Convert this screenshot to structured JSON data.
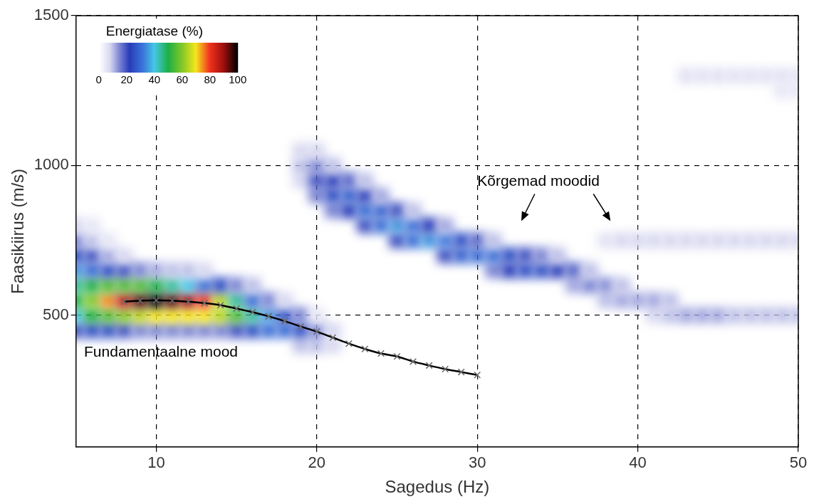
{
  "chart_data": {
    "type": "heatmap",
    "x_label": "Sagedus (Hz)",
    "y_label": "Faasikiirus (m/s)",
    "xlim": [
      5,
      50
    ],
    "xticks": [
      10,
      20,
      30,
      40,
      50
    ],
    "ylim": [
      60,
      1500
    ],
    "yticks": [
      500,
      1000,
      1500
    ],
    "grid": true,
    "heatmap": {
      "cells": [
        [
          5,
          450,
          20
        ],
        [
          5,
          500,
          40
        ],
        [
          5,
          550,
          50
        ],
        [
          5,
          600,
          45
        ],
        [
          5,
          650,
          35
        ],
        [
          5,
          700,
          25
        ],
        [
          5,
          750,
          15
        ],
        [
          5,
          800,
          8
        ],
        [
          6,
          450,
          25
        ],
        [
          6,
          500,
          50
        ],
        [
          6,
          550,
          60
        ],
        [
          6,
          600,
          50
        ],
        [
          6,
          650,
          30
        ],
        [
          6,
          700,
          20
        ],
        [
          6,
          750,
          10
        ],
        [
          6,
          800,
          5
        ],
        [
          7,
          450,
          25
        ],
        [
          7,
          500,
          55
        ],
        [
          7,
          550,
          75
        ],
        [
          7,
          600,
          55
        ],
        [
          7,
          650,
          25
        ],
        [
          7,
          700,
          12
        ],
        [
          7,
          750,
          5
        ],
        [
          8,
          450,
          20
        ],
        [
          8,
          500,
          60
        ],
        [
          8,
          550,
          85
        ],
        [
          8,
          600,
          55
        ],
        [
          8,
          650,
          20
        ],
        [
          8,
          700,
          8
        ],
        [
          9,
          450,
          15
        ],
        [
          9,
          500,
          65
        ],
        [
          9,
          550,
          95
        ],
        [
          9,
          600,
          55
        ],
        [
          9,
          650,
          15
        ],
        [
          10,
          450,
          15
        ],
        [
          10,
          500,
          70
        ],
        [
          10,
          550,
          100
        ],
        [
          10,
          600,
          50
        ],
        [
          10,
          650,
          12
        ],
        [
          11,
          450,
          15
        ],
        [
          11,
          500,
          70
        ],
        [
          11,
          550,
          95
        ],
        [
          11,
          600,
          45
        ],
        [
          11,
          650,
          10
        ],
        [
          12,
          450,
          15
        ],
        [
          12,
          500,
          70
        ],
        [
          12,
          550,
          90
        ],
        [
          12,
          600,
          40
        ],
        [
          12,
          650,
          10
        ],
        [
          13,
          450,
          15
        ],
        [
          13,
          500,
          70
        ],
        [
          13,
          550,
          80
        ],
        [
          13,
          600,
          30
        ],
        [
          13,
          650,
          8
        ],
        [
          14,
          450,
          15
        ],
        [
          14,
          500,
          65
        ],
        [
          14,
          550,
          65
        ],
        [
          14,
          600,
          25
        ],
        [
          15,
          450,
          20
        ],
        [
          15,
          500,
          55
        ],
        [
          15,
          550,
          45
        ],
        [
          15,
          600,
          15
        ],
        [
          16,
          450,
          25
        ],
        [
          16,
          500,
          45
        ],
        [
          16,
          550,
          30
        ],
        [
          16,
          600,
          10
        ],
        [
          17,
          450,
          30
        ],
        [
          17,
          500,
          35
        ],
        [
          17,
          550,
          15
        ],
        [
          18,
          450,
          30
        ],
        [
          18,
          500,
          25
        ],
        [
          18,
          550,
          8
        ],
        [
          19,
          400,
          10
        ],
        [
          19,
          450,
          25
        ],
        [
          19,
          500,
          15
        ],
        [
          20,
          400,
          10
        ],
        [
          20,
          450,
          15
        ],
        [
          20,
          500,
          5
        ],
        [
          21,
          400,
          8
        ],
        [
          21,
          450,
          8
        ],
        [
          19,
          950,
          8
        ],
        [
          19,
          1000,
          10
        ],
        [
          19,
          1050,
          8
        ],
        [
          20,
          900,
          15
        ],
        [
          20,
          950,
          20
        ],
        [
          20,
          1000,
          15
        ],
        [
          20,
          1050,
          8
        ],
        [
          21,
          850,
          15
        ],
        [
          21,
          900,
          25
        ],
        [
          21,
          950,
          22
        ],
        [
          21,
          1000,
          10
        ],
        [
          22,
          850,
          22
        ],
        [
          22,
          900,
          28
        ],
        [
          22,
          950,
          18
        ],
        [
          23,
          800,
          20
        ],
        [
          23,
          850,
          30
        ],
        [
          23,
          900,
          22
        ],
        [
          23,
          950,
          10
        ],
        [
          24,
          800,
          30
        ],
        [
          24,
          850,
          28
        ],
        [
          24,
          900,
          12
        ],
        [
          25,
          750,
          20
        ],
        [
          25,
          800,
          35
        ],
        [
          25,
          850,
          20
        ],
        [
          26,
          750,
          30
        ],
        [
          26,
          800,
          30
        ],
        [
          26,
          850,
          10
        ],
        [
          27,
          750,
          35
        ],
        [
          27,
          800,
          22
        ],
        [
          28,
          700,
          20
        ],
        [
          28,
          750,
          32
        ],
        [
          28,
          800,
          12
        ],
        [
          29,
          700,
          28
        ],
        [
          29,
          750,
          25
        ],
        [
          30,
          700,
          30
        ],
        [
          30,
          750,
          18
        ],
        [
          31,
          650,
          15
        ],
        [
          31,
          700,
          30
        ],
        [
          31,
          750,
          10
        ],
        [
          32,
          650,
          22
        ],
        [
          32,
          700,
          25
        ],
        [
          33,
          650,
          25
        ],
        [
          33,
          700,
          20
        ],
        [
          34,
          650,
          25
        ],
        [
          34,
          700,
          15
        ],
        [
          35,
          650,
          22
        ],
        [
          35,
          700,
          10
        ],
        [
          36,
          600,
          12
        ],
        [
          36,
          650,
          18
        ],
        [
          37,
          600,
          15
        ],
        [
          37,
          650,
          10
        ],
        [
          38,
          550,
          10
        ],
        [
          38,
          600,
          14
        ],
        [
          39,
          550,
          12
        ],
        [
          39,
          600,
          10
        ],
        [
          40,
          550,
          12
        ],
        [
          41,
          500,
          8
        ],
        [
          41,
          550,
          12
        ],
        [
          42,
          500,
          10
        ],
        [
          42,
          550,
          10
        ],
        [
          43,
          500,
          12
        ],
        [
          44,
          500,
          12
        ],
        [
          45,
          500,
          12
        ],
        [
          46,
          500,
          10
        ],
        [
          47,
          500,
          10
        ],
        [
          48,
          500,
          10
        ],
        [
          49,
          500,
          10
        ],
        [
          50,
          500,
          10
        ],
        [
          38,
          750,
          6
        ],
        [
          39,
          750,
          8
        ],
        [
          40,
          750,
          8
        ],
        [
          41,
          750,
          8
        ],
        [
          42,
          750,
          8
        ],
        [
          43,
          750,
          8
        ],
        [
          44,
          750,
          8
        ],
        [
          45,
          750,
          8
        ],
        [
          46,
          750,
          8
        ],
        [
          47,
          750,
          8
        ],
        [
          48,
          750,
          8
        ],
        [
          49,
          750,
          8
        ],
        [
          50,
          750,
          8
        ],
        [
          43,
          1300,
          6
        ],
        [
          44,
          1300,
          6
        ],
        [
          45,
          1300,
          6
        ],
        [
          46,
          1300,
          6
        ],
        [
          47,
          1300,
          6
        ],
        [
          48,
          1300,
          6
        ],
        [
          49,
          1300,
          6
        ],
        [
          50,
          1300,
          6
        ],
        [
          49,
          1250,
          5
        ],
        [
          50,
          1250,
          5
        ]
      ],
      "colorbar": {
        "label": "Energiatase (%)",
        "range": [
          0,
          100
        ],
        "ticks": [
          0,
          20,
          40,
          60,
          80,
          100
        ]
      }
    },
    "series": [
      {
        "type": "line",
        "color": "#000000",
        "marker": "x",
        "x": [
          8,
          9,
          10,
          11,
          12,
          13,
          14,
          15,
          16,
          17,
          18,
          19,
          20,
          21,
          22,
          23,
          24,
          25,
          26,
          27,
          28,
          29,
          30
        ],
        "values": [
          545,
          548,
          550,
          548,
          545,
          540,
          533,
          522,
          510,
          496,
          480,
          462,
          445,
          425,
          405,
          387,
          372,
          362,
          345,
          332,
          320,
          310,
          300
        ]
      }
    ],
    "annotations": [
      {
        "text": "Fundamentaalne mood",
        "x": 5.5,
        "y": 375
      },
      {
        "text": "Kõrgemad moodid",
        "x": 30,
        "y": 945
      }
    ]
  }
}
